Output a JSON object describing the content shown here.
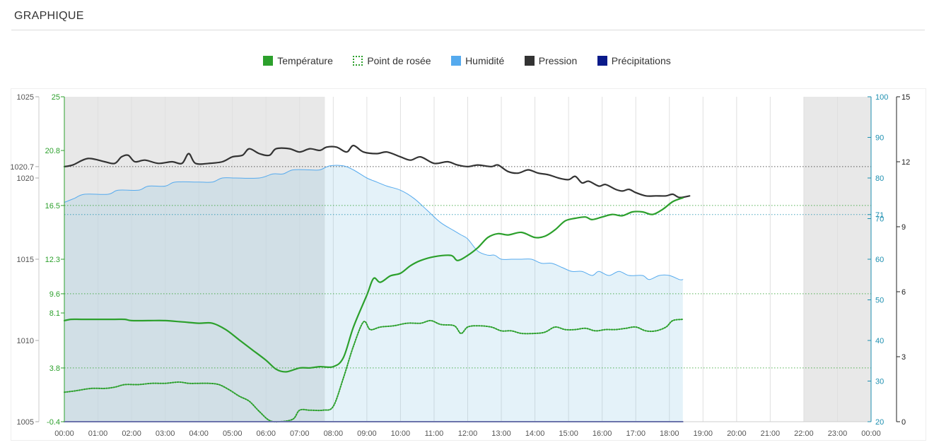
{
  "panel": {
    "title": "GRAPHIQUE"
  },
  "chart_data": {
    "type": "line",
    "title": "",
    "x_labels": [
      "00:00",
      "01:00",
      "02:00",
      "03:00",
      "04:00",
      "05:00",
      "06:00",
      "07:00",
      "08:00",
      "09:00",
      "10:00",
      "11:00",
      "12:00",
      "13:00",
      "14:00",
      "15:00",
      "16:00",
      "17:00",
      "18:00",
      "19:00",
      "20:00",
      "21:00",
      "22:00",
      "23:00",
      "00:00"
    ],
    "x_unit": "hours",
    "xlim": [
      0,
      24
    ],
    "night_shading": [
      [
        0,
        7.75
      ],
      [
        22,
        24
      ]
    ],
    "legend_placement": "top-center",
    "legend": [
      {
        "label": "Température",
        "color": "#2ca02c",
        "style": "solid"
      },
      {
        "label": "Point de rosée",
        "color": "#2ca02c",
        "style": "dotted"
      },
      {
        "label": "Humidité",
        "color": "#55aaee",
        "style": "solid"
      },
      {
        "label": "Pression",
        "color": "#333333",
        "style": "solid"
      },
      {
        "label": "Précipitations",
        "color": "#0a1a8a",
        "style": "solid"
      }
    ],
    "axes": {
      "pressure": {
        "ticks": [
          "1025",
          "1020.7",
          "1020",
          "1015",
          "1010",
          "1005"
        ],
        "ylim": [
          1005,
          1025
        ],
        "color": "#555555"
      },
      "temperature": {
        "ticks": [
          "25",
          "20.8",
          "16.5",
          "12.3",
          "9.6",
          "8.1",
          "3.8",
          "-0.4"
        ],
        "ylim": [
          -0.4,
          25
        ],
        "color": "#2ca02c"
      },
      "humidity": {
        "ticks": [
          "100",
          "90",
          "80",
          "71",
          "70",
          "60",
          "50",
          "40",
          "30",
          "20"
        ],
        "ylim": [
          20,
          100
        ],
        "color": "#1d8fb0"
      },
      "precipitation": {
        "ticks": [
          "15",
          "12",
          "9",
          "6",
          "3",
          "0"
        ],
        "ylim": [
          0,
          15
        ],
        "color": "#222222"
      }
    },
    "reference_lines": [
      {
        "axis": "pressure",
        "value": 1020.7,
        "color": "#333333"
      },
      {
        "axis": "temperature",
        "value": 16.5,
        "color": "#2ca02c"
      },
      {
        "axis": "temperature",
        "value": 9.6,
        "color": "#2ca02c"
      },
      {
        "axis": "temperature",
        "value": 3.8,
        "color": "#2ca02c"
      },
      {
        "axis": "humidity",
        "value": 71,
        "color": "#1d8fb0"
      }
    ],
    "series": [
      {
        "name": "Pression",
        "axis": "pressure",
        "color": "#333333",
        "style": "solid",
        "points": [
          [
            0,
            1020.7
          ],
          [
            0.25,
            1020.8
          ],
          [
            0.7,
            1021.2
          ],
          [
            1.2,
            1021.0
          ],
          [
            1.5,
            1020.9
          ],
          [
            1.7,
            1021.3
          ],
          [
            1.9,
            1021.4
          ],
          [
            2.1,
            1021.0
          ],
          [
            2.4,
            1021.1
          ],
          [
            2.8,
            1020.9
          ],
          [
            3.2,
            1021.0
          ],
          [
            3.5,
            1020.9
          ],
          [
            3.7,
            1021.5
          ],
          [
            3.9,
            1020.9
          ],
          [
            4.3,
            1020.9
          ],
          [
            4.7,
            1021.0
          ],
          [
            5.0,
            1021.3
          ],
          [
            5.3,
            1021.4
          ],
          [
            5.5,
            1021.8
          ],
          [
            5.8,
            1021.5
          ],
          [
            6.1,
            1021.4
          ],
          [
            6.3,
            1021.8
          ],
          [
            6.7,
            1021.8
          ],
          [
            7.0,
            1021.6
          ],
          [
            7.3,
            1021.8
          ],
          [
            7.6,
            1021.7
          ],
          [
            7.8,
            1021.9
          ],
          [
            8.1,
            1021.9
          ],
          [
            8.4,
            1021.6
          ],
          [
            8.6,
            1022.0
          ],
          [
            8.9,
            1021.6
          ],
          [
            9.3,
            1021.5
          ],
          [
            9.6,
            1021.6
          ],
          [
            10.0,
            1021.3
          ],
          [
            10.3,
            1021.1
          ],
          [
            10.6,
            1021.3
          ],
          [
            11.0,
            1020.9
          ],
          [
            11.4,
            1021.0
          ],
          [
            11.7,
            1020.8
          ],
          [
            12.0,
            1020.7
          ],
          [
            12.3,
            1020.8
          ],
          [
            12.7,
            1020.7
          ],
          [
            12.9,
            1020.8
          ],
          [
            13.2,
            1020.4
          ],
          [
            13.5,
            1020.3
          ],
          [
            13.8,
            1020.5
          ],
          [
            14.1,
            1020.3
          ],
          [
            14.4,
            1020.2
          ],
          [
            14.7,
            1020.0
          ],
          [
            15.0,
            1019.9
          ],
          [
            15.2,
            1020.1
          ],
          [
            15.4,
            1019.7
          ],
          [
            15.6,
            1019.8
          ],
          [
            15.9,
            1019.5
          ],
          [
            16.1,
            1019.6
          ],
          [
            16.4,
            1019.3
          ],
          [
            16.6,
            1019.2
          ],
          [
            16.8,
            1019.3
          ],
          [
            17.0,
            1019.1
          ],
          [
            17.3,
            1018.9
          ],
          [
            17.6,
            1018.9
          ],
          [
            17.9,
            1018.9
          ],
          [
            18.1,
            1019.0
          ],
          [
            18.3,
            1018.8
          ],
          [
            18.6,
            1018.9
          ]
        ]
      },
      {
        "name": "Humidité",
        "axis": "humidity",
        "color": "#55aaee",
        "style": "solid",
        "fill": "area",
        "points": [
          [
            0,
            74
          ],
          [
            0.3,
            75
          ],
          [
            0.6,
            76
          ],
          [
            1.3,
            76
          ],
          [
            1.6,
            77
          ],
          [
            2.2,
            77
          ],
          [
            2.5,
            78
          ],
          [
            3.0,
            78
          ],
          [
            3.3,
            79
          ],
          [
            4.0,
            79
          ],
          [
            4.4,
            79
          ],
          [
            4.7,
            80
          ],
          [
            5.1,
            80
          ],
          [
            5.8,
            80
          ],
          [
            6.2,
            81
          ],
          [
            6.5,
            81
          ],
          [
            6.8,
            82
          ],
          [
            7.3,
            82
          ],
          [
            7.6,
            82
          ],
          [
            7.9,
            83
          ],
          [
            8.3,
            83
          ],
          [
            8.6,
            82
          ],
          [
            9.0,
            80
          ],
          [
            9.3,
            79
          ],
          [
            9.6,
            78
          ],
          [
            10.0,
            77
          ],
          [
            10.4,
            75
          ],
          [
            10.8,
            72
          ],
          [
            11.2,
            69
          ],
          [
            11.6,
            67
          ],
          [
            11.8,
            66
          ],
          [
            12.0,
            65
          ],
          [
            12.3,
            62
          ],
          [
            12.6,
            61
          ],
          [
            12.8,
            61
          ],
          [
            13.0,
            60
          ],
          [
            13.3,
            60
          ],
          [
            13.6,
            60
          ],
          [
            13.9,
            60
          ],
          [
            14.2,
            59
          ],
          [
            14.5,
            59
          ],
          [
            14.8,
            58
          ],
          [
            15.1,
            57
          ],
          [
            15.4,
            57
          ],
          [
            15.7,
            56
          ],
          [
            15.9,
            57
          ],
          [
            16.2,
            56
          ],
          [
            16.5,
            57
          ],
          [
            16.8,
            56
          ],
          [
            17.2,
            56
          ],
          [
            17.4,
            55
          ],
          [
            17.7,
            56
          ],
          [
            18.0,
            56
          ],
          [
            18.3,
            55
          ],
          [
            18.4,
            55
          ]
        ]
      },
      {
        "name": "Température",
        "axis": "temperature",
        "color": "#2ca02c",
        "style": "solid",
        "points": [
          [
            0,
            7.5
          ],
          [
            0.2,
            7.6
          ],
          [
            0.5,
            7.6
          ],
          [
            1.0,
            7.6
          ],
          [
            1.5,
            7.6
          ],
          [
            1.8,
            7.6
          ],
          [
            2.0,
            7.5
          ],
          [
            2.5,
            7.5
          ],
          [
            3.0,
            7.5
          ],
          [
            3.5,
            7.4
          ],
          [
            4.0,
            7.3
          ],
          [
            4.4,
            7.3
          ],
          [
            4.8,
            6.8
          ],
          [
            5.2,
            6.0
          ],
          [
            5.6,
            5.2
          ],
          [
            6.0,
            4.4
          ],
          [
            6.3,
            3.7
          ],
          [
            6.6,
            3.5
          ],
          [
            7.0,
            3.8
          ],
          [
            7.3,
            3.8
          ],
          [
            7.6,
            3.9
          ],
          [
            8.0,
            3.9
          ],
          [
            8.3,
            4.6
          ],
          [
            8.6,
            7.0
          ],
          [
            9.0,
            9.5
          ],
          [
            9.2,
            10.8
          ],
          [
            9.4,
            10.5
          ],
          [
            9.7,
            11.0
          ],
          [
            10.0,
            11.2
          ],
          [
            10.3,
            11.8
          ],
          [
            10.6,
            12.2
          ],
          [
            11.0,
            12.5
          ],
          [
            11.5,
            12.6
          ],
          [
            11.7,
            12.2
          ],
          [
            12.0,
            12.6
          ],
          [
            12.3,
            13.2
          ],
          [
            12.6,
            14.0
          ],
          [
            12.9,
            14.3
          ],
          [
            13.2,
            14.2
          ],
          [
            13.6,
            14.4
          ],
          [
            14.0,
            14.0
          ],
          [
            14.3,
            14.1
          ],
          [
            14.6,
            14.6
          ],
          [
            14.9,
            15.3
          ],
          [
            15.2,
            15.5
          ],
          [
            15.5,
            15.6
          ],
          [
            15.7,
            15.4
          ],
          [
            16.0,
            15.6
          ],
          [
            16.3,
            15.8
          ],
          [
            16.6,
            15.7
          ],
          [
            16.9,
            16.0
          ],
          [
            17.2,
            16.0
          ],
          [
            17.5,
            15.8
          ],
          [
            17.8,
            16.2
          ],
          [
            18.1,
            16.8
          ],
          [
            18.4,
            17.1
          ]
        ]
      },
      {
        "name": "Point de rosée",
        "axis": "temperature",
        "color": "#2ca02c",
        "style": "dotted",
        "points": [
          [
            0,
            1.9
          ],
          [
            0.3,
            2.0
          ],
          [
            0.8,
            2.2
          ],
          [
            1.2,
            2.2
          ],
          [
            1.5,
            2.3
          ],
          [
            1.8,
            2.5
          ],
          [
            2.2,
            2.5
          ],
          [
            2.6,
            2.6
          ],
          [
            3.0,
            2.6
          ],
          [
            3.4,
            2.7
          ],
          [
            3.7,
            2.6
          ],
          [
            4.0,
            2.6
          ],
          [
            4.3,
            2.6
          ],
          [
            4.6,
            2.5
          ],
          [
            4.9,
            2.1
          ],
          [
            5.2,
            1.6
          ],
          [
            5.5,
            1.2
          ],
          [
            5.8,
            0.4
          ],
          [
            6.1,
            -0.3
          ],
          [
            6.4,
            -0.4
          ],
          [
            6.8,
            -0.2
          ],
          [
            7.0,
            0.5
          ],
          [
            7.3,
            0.5
          ],
          [
            7.7,
            0.5
          ],
          [
            8.0,
            0.8
          ],
          [
            8.3,
            3.0
          ],
          [
            8.6,
            5.5
          ],
          [
            8.9,
            7.4
          ],
          [
            9.1,
            6.8
          ],
          [
            9.4,
            7.0
          ],
          [
            9.8,
            7.1
          ],
          [
            10.2,
            7.3
          ],
          [
            10.6,
            7.3
          ],
          [
            10.9,
            7.5
          ],
          [
            11.2,
            7.2
          ],
          [
            11.6,
            7.1
          ],
          [
            11.8,
            6.5
          ],
          [
            12.0,
            7.0
          ],
          [
            12.3,
            7.1
          ],
          [
            12.7,
            7.0
          ],
          [
            13.0,
            6.7
          ],
          [
            13.3,
            6.7
          ],
          [
            13.6,
            6.5
          ],
          [
            14.0,
            6.5
          ],
          [
            14.3,
            6.6
          ],
          [
            14.6,
            7.0
          ],
          [
            14.9,
            6.8
          ],
          [
            15.2,
            6.8
          ],
          [
            15.5,
            6.9
          ],
          [
            15.8,
            6.7
          ],
          [
            16.1,
            6.8
          ],
          [
            16.4,
            6.8
          ],
          [
            16.7,
            6.9
          ],
          [
            17.0,
            7.0
          ],
          [
            17.3,
            6.7
          ],
          [
            17.6,
            6.7
          ],
          [
            17.9,
            7.0
          ],
          [
            18.1,
            7.5
          ],
          [
            18.4,
            7.6
          ]
        ]
      },
      {
        "name": "Précipitations",
        "axis": "precipitation",
        "color": "#0a1a8a",
        "style": "solid",
        "points": [
          [
            0,
            0
          ],
          [
            18.4,
            0
          ]
        ]
      }
    ]
  }
}
